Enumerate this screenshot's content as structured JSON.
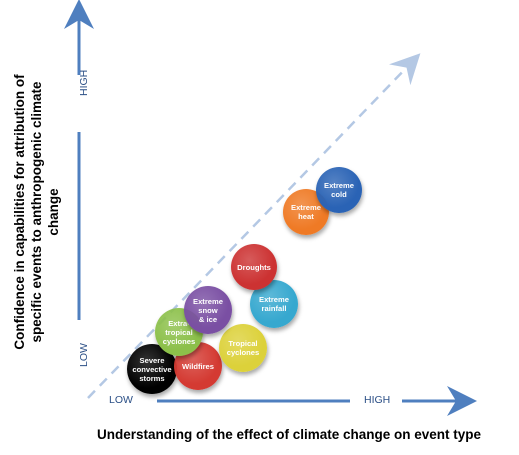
{
  "y_axis": {
    "title": "Confidence in capabilities for attribution of specific events to anthropogenic climate change",
    "high_label": "HIGH",
    "low_label": "LOW"
  },
  "x_axis": {
    "title": "Understanding of the effect of climate change on event type",
    "low_label": "LOW",
    "high_label": "HIGH"
  },
  "colors": {
    "axis": "#4f7fbf",
    "dashed_line": "#b4c8e4",
    "tick_text": "#2b4f86"
  },
  "events": [
    {
      "label": "Severe\nconvective\nstorms",
      "color": "#000000",
      "text_color": "#ffffff"
    },
    {
      "label": "Wildfires",
      "color": "#d43a32",
      "text_color": "#ffffff"
    },
    {
      "label": "Tropical\ncyclones",
      "color": "#dcd13a",
      "text_color": "#ffffff"
    },
    {
      "label": "Extra-\ntropical\ncyclones",
      "color": "#8cc04a",
      "text_color": "#ffffff"
    },
    {
      "label": "Extreme\nsnow\n& ice",
      "color": "#7a4fa3",
      "text_color": "#ffffff"
    },
    {
      "label": "Extreme\nrainfall",
      "color": "#36a8cf",
      "text_color": "#ffffff"
    },
    {
      "label": "Droughts",
      "color": "#cc3232",
      "text_color": "#ffffff"
    },
    {
      "label": "Extreme\nheat",
      "color": "#ef7a25",
      "text_color": "#ffffff"
    },
    {
      "label": "Extreme\ncold",
      "color": "#2a63b5",
      "text_color": "#ffffff"
    }
  ]
}
